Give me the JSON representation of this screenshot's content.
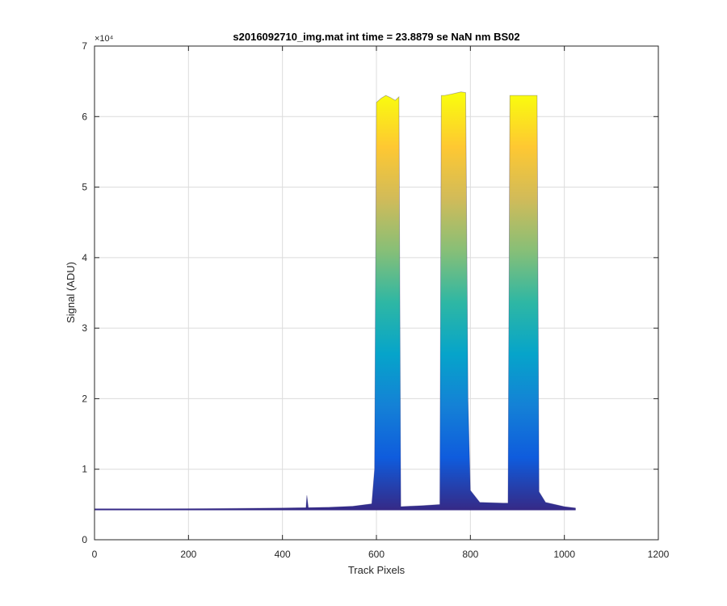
{
  "chart_data": {
    "type": "area",
    "title": "s2016092710_img.mat int time = 23.8879 se  NaN nm BS02",
    "xlabel": "Track Pixels",
    "ylabel": "Signal (ADU)",
    "xlim": [
      0,
      1200
    ],
    "ylim": [
      0,
      70000
    ],
    "x_ticks": [
      0,
      200,
      400,
      600,
      800,
      1000,
      1200
    ],
    "y_ticks": [
      0,
      10000,
      20000,
      30000,
      40000,
      50000,
      60000,
      70000
    ],
    "x_tick_labels": [
      "0",
      "200",
      "400",
      "600",
      "800",
      "1000",
      "1200"
    ],
    "y_tick_labels": [
      "0",
      "1",
      "2",
      "3",
      "4",
      "5",
      "6",
      "7"
    ],
    "y_exponent_label": "×10⁴",
    "grid": true,
    "colormap": [
      "#352a87",
      "#0f5cdd",
      "#1481d6",
      "#06a4ca",
      "#2eb7a4",
      "#87bf77",
      "#d1bb59",
      "#fec832",
      "#f9fb0e"
    ],
    "series": [
      {
        "x": [
          0,
          100,
          200,
          300,
          400,
          450,
          452,
          455,
          500,
          550,
          590,
          596,
          600,
          610,
          620,
          630,
          640,
          648,
          652,
          700,
          735,
          738,
          745,
          760,
          780,
          790,
          795,
          800,
          820,
          870,
          880,
          884,
          890,
          910,
          930,
          942,
          946,
          960,
          1000,
          1024
        ],
        "y": [
          4300,
          4350,
          4400,
          4450,
          4500,
          4550,
          6300,
          4550,
          4600,
          4750,
          5100,
          10000,
          62000,
          62600,
          63000,
          62700,
          62300,
          62800,
          4700,
          4850,
          5000,
          63000,
          63000,
          63200,
          63500,
          63400,
          20000,
          7000,
          5300,
          5200,
          5200,
          63000,
          63000,
          63000,
          63000,
          63000,
          6800,
          5300,
          4700,
          4500
        ]
      }
    ]
  }
}
